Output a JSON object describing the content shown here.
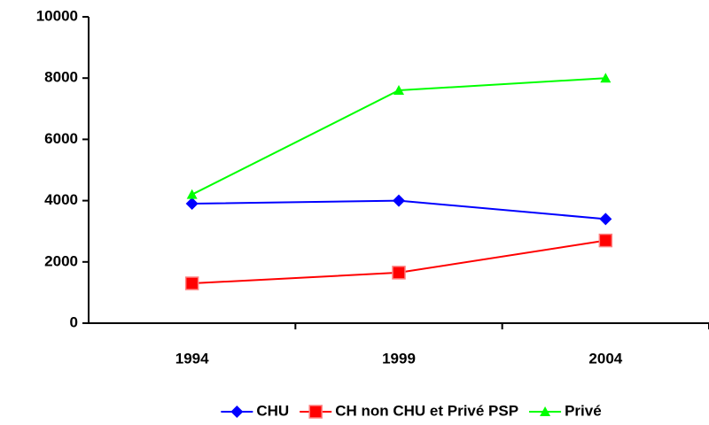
{
  "chart_data": {
    "type": "line",
    "categories": [
      "1994",
      "1999",
      "2004"
    ],
    "series": [
      {
        "name": "CHU",
        "color": "#0000ff",
        "marker": "diamond",
        "values": [
          3900,
          4000,
          3400
        ]
      },
      {
        "name": "CH non CHU et Privé PSP",
        "color": "#ff0000",
        "marker": "square",
        "values": [
          1300,
          1650,
          2700
        ]
      },
      {
        "name": "Privé",
        "color": "#00ff00",
        "marker": "triangle",
        "values": [
          4200,
          7600,
          8000
        ]
      }
    ],
    "ylim": [
      0,
      10000
    ],
    "yticks": [
      0,
      2000,
      4000,
      6000,
      8000,
      10000
    ],
    "grid": false
  }
}
